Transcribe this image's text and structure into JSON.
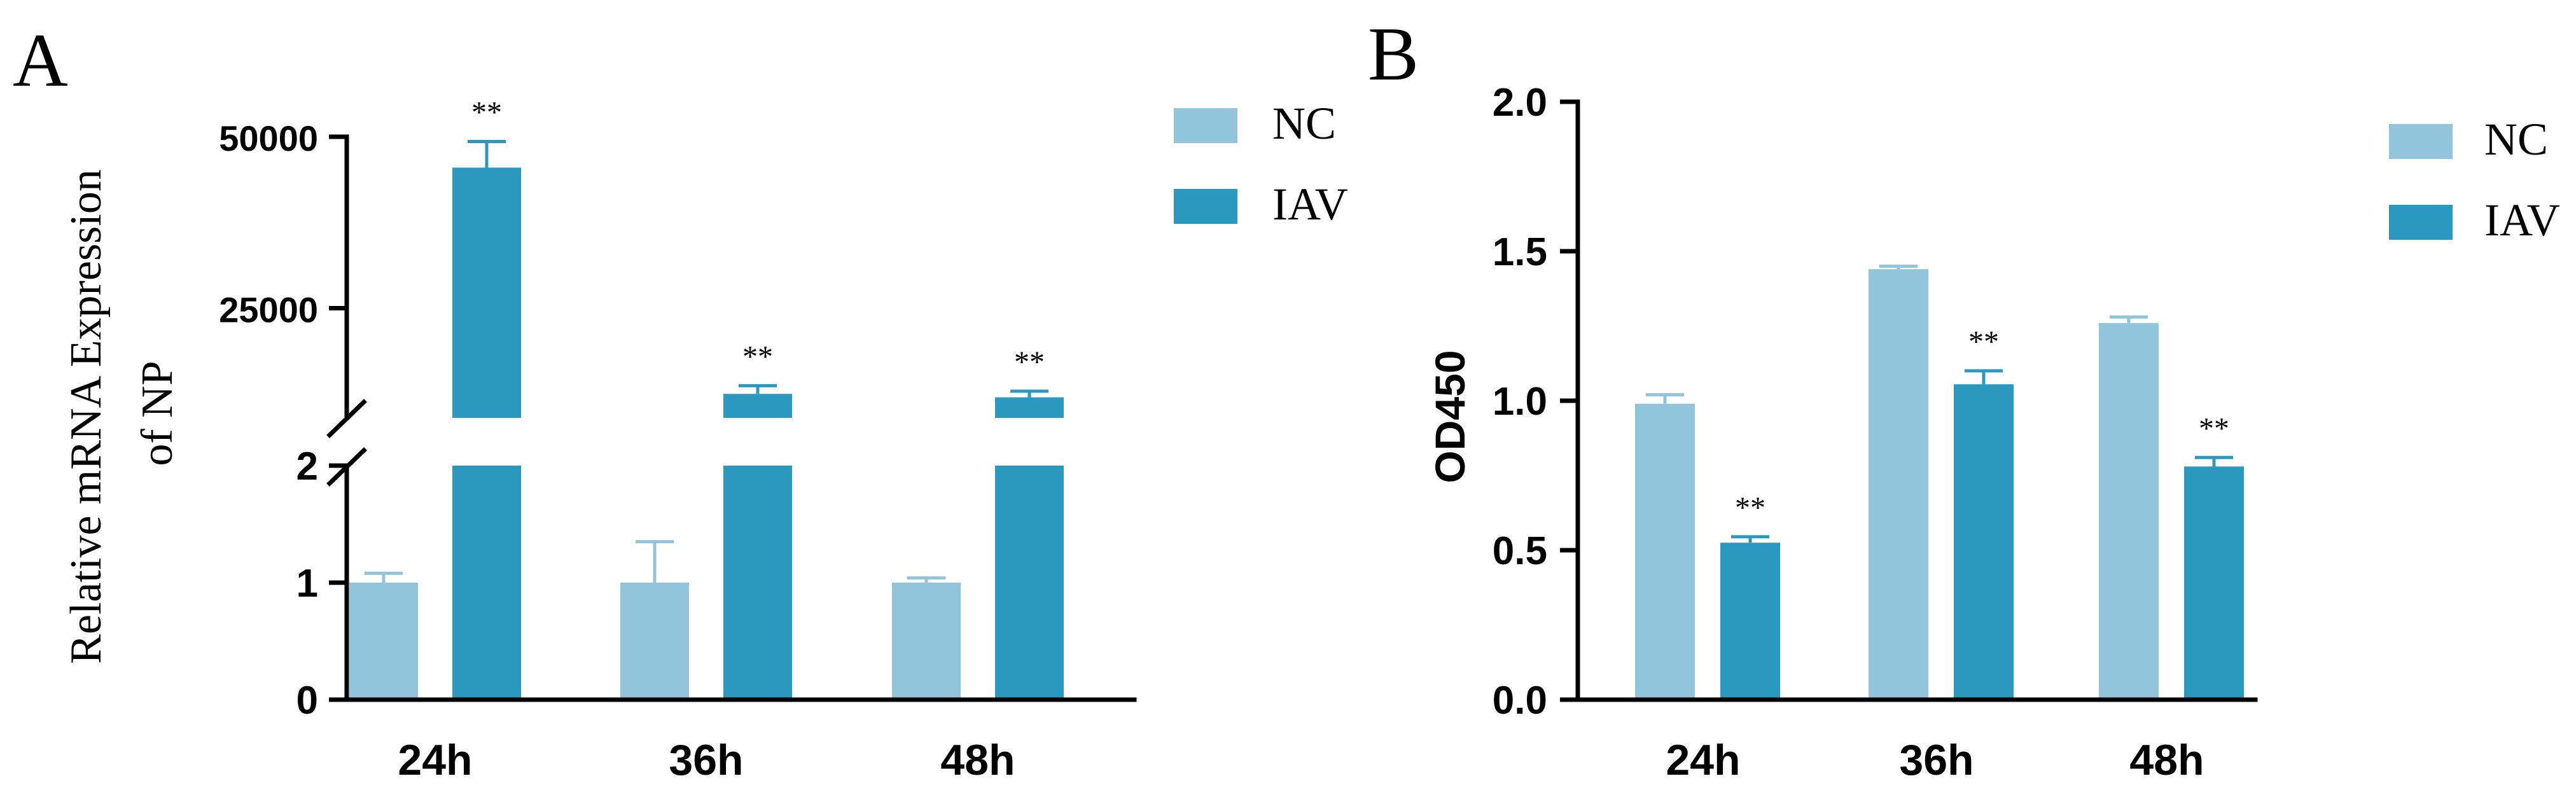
{
  "colors": {
    "nc": "#92c5dc",
    "iav": "#2b98c0",
    "axis": "#000000"
  },
  "chart_data": [
    {
      "panel": "A",
      "type": "bar",
      "ylabel_line1": "Relative mRNA Expression",
      "ylabel_line2": "of NP",
      "categories": [
        "24h",
        "36h",
        "48h"
      ],
      "legend": [
        "NC",
        "IAV"
      ],
      "y_lower_ticks": [
        "0",
        "1",
        "2"
      ],
      "y_upper_ticks": [
        "25000",
        "50000"
      ],
      "y_lower_range": [
        0,
        2
      ],
      "y_upper_range": [
        9000,
        50000
      ],
      "series": [
        {
          "name": "NC",
          "values": [
            1.0,
            1.0,
            1.0
          ],
          "errors": [
            0.08,
            0.35,
            0.04
          ]
        },
        {
          "name": "IAV",
          "values": [
            45500,
            12500,
            12000
          ],
          "errors": [
            3800,
            1200,
            900
          ]
        }
      ],
      "significance": [
        "**",
        "**",
        "**"
      ]
    },
    {
      "panel": "B",
      "type": "bar",
      "ylabel": "OD450",
      "categories": [
        "24h",
        "36h",
        "48h"
      ],
      "legend": [
        "NC",
        "IAV"
      ],
      "y_ticks": [
        "0.0",
        "0.5",
        "1.0",
        "1.5",
        "2.0"
      ],
      "ylim": [
        0,
        2.0
      ],
      "series": [
        {
          "name": "NC",
          "values": [
            0.99,
            1.44,
            1.26
          ],
          "errors": [
            0.03,
            0.01,
            0.02
          ]
        },
        {
          "name": "IAV",
          "values": [
            0.525,
            1.055,
            0.78
          ],
          "errors": [
            0.02,
            0.045,
            0.03
          ]
        }
      ],
      "significance": [
        "**",
        "**",
        "**"
      ]
    }
  ]
}
